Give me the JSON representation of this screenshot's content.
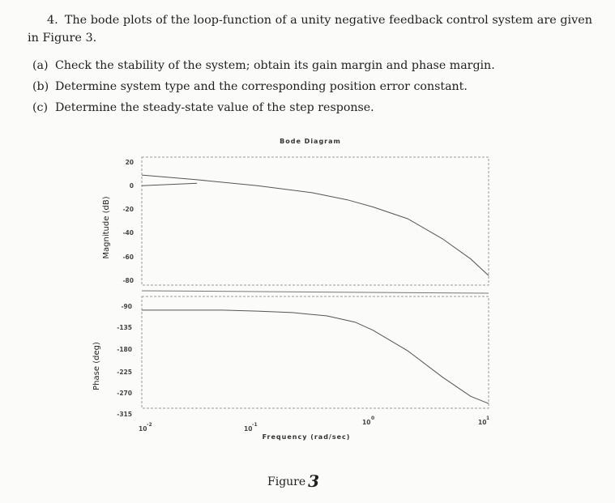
{
  "problem": {
    "number": "4.",
    "text_line1": "The bode plots of the loop-function of a unity negative feedback control system are given",
    "text_line2": "in Figure 3.",
    "parts": [
      {
        "tag": "(a)",
        "text": "Check the stability of the system; obtain its gain margin and phase margin."
      },
      {
        "tag": "(b)",
        "text": "Determine system type and the corresponding position error constant."
      },
      {
        "tag": "(c)",
        "text": "Determine the steady-state value of the step response."
      }
    ]
  },
  "chart_data": [
    {
      "type": "line",
      "panel": "magnitude",
      "title": "Bode Diagram",
      "ylabel": "Magnitude (dB)",
      "xlabel": "Frequency  (rad/sec)",
      "xscale": "log",
      "xlim": [
        0.01,
        10
      ],
      "ylim": [
        -90,
        20
      ],
      "yticks": [
        "20",
        "0",
        "-20",
        "-40",
        "-60",
        "-80"
      ],
      "series": [
        {
          "name": "magnitude",
          "x": [
            0.01,
            0.03,
            0.1,
            0.3,
            0.6,
            1,
            2,
            4,
            7,
            10
          ],
          "y": [
            9,
            5,
            0,
            -6,
            -12,
            -18,
            -28,
            -45,
            -62,
            -76
          ]
        },
        {
          "name": "low-frequency segment",
          "x": [
            0.01,
            0.03
          ],
          "y": [
            0,
            2
          ]
        }
      ]
    },
    {
      "type": "line",
      "panel": "phase",
      "ylabel": "Phase (deg)",
      "xlabel": "Frequency  (rad/sec)",
      "xscale": "log",
      "xlim": [
        0.01,
        10
      ],
      "ylim": [
        -315,
        -90
      ],
      "yticks": [
        "-90",
        "-135",
        "-180",
        "-225",
        "-270",
        "-315"
      ],
      "xticks": [
        {
          "base": "10",
          "exp": "-2"
        },
        {
          "base": "10",
          "exp": "-1"
        },
        {
          "base": "10",
          "exp": "0"
        },
        {
          "base": "10",
          "exp": "1"
        }
      ],
      "series": [
        {
          "name": "phase",
          "x": [
            0.01,
            0.05,
            0.1,
            0.2,
            0.4,
            0.7,
            1,
            2,
            4,
            7,
            10
          ],
          "y": [
            -100,
            -100,
            -102,
            -105,
            -112,
            -125,
            -142,
            -185,
            -240,
            -280,
            -295
          ]
        }
      ]
    }
  ],
  "figure_caption": {
    "label": "Figure",
    "number": "3"
  }
}
